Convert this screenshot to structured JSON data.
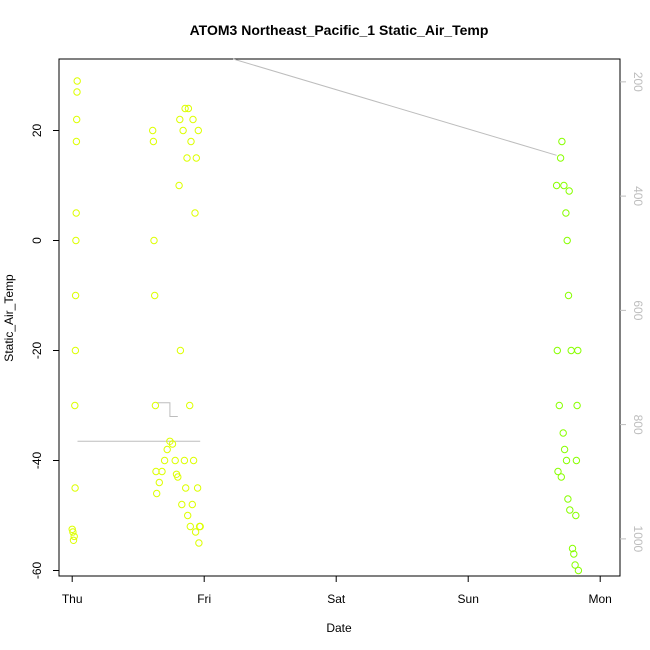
{
  "chart_data": {
    "type": "scatter",
    "title": "ATOM3 Northeast_Pacific_1 Static_Air_Temp",
    "xlabel": "Date",
    "ylabel": "Static_Air_Temp",
    "x_unit": "days after Thursday 00:00",
    "x_ticks": [
      {
        "value": 0,
        "label": "Thu"
      },
      {
        "value": 1,
        "label": "Fri"
      },
      {
        "value": 2,
        "label": "Sat"
      },
      {
        "value": 3,
        "label": "Sun"
      },
      {
        "value": 4,
        "label": "Mon"
      }
    ],
    "xlim": [
      -0.1,
      4.15
    ],
    "ylim": [
      -61,
      33
    ],
    "y_ticks": [
      -60,
      -40,
      -20,
      0,
      20
    ],
    "right_axis": {
      "ylim": [
        1065,
        160
      ],
      "ticks": [
        200,
        400,
        600,
        800,
        1000
      ],
      "color": "#bdbdbd"
    },
    "point_colors": {
      "early": "#ddff00",
      "late": "#88ff00"
    },
    "line_color": "#bdbdbd",
    "grid": false,
    "legend": "none",
    "clusters": [
      {
        "color": "#ddff00",
        "points": [
          [
            0.0,
            -52.5
          ],
          [
            0.005,
            -53
          ],
          [
            0.01,
            -54.5
          ],
          [
            0.015,
            -53.8
          ],
          [
            0.02,
            -30
          ],
          [
            0.022,
            -45
          ],
          [
            0.024,
            -20
          ],
          [
            0.026,
            -10
          ],
          [
            0.028,
            0
          ],
          [
            0.03,
            5
          ],
          [
            0.032,
            18
          ],
          [
            0.034,
            22
          ],
          [
            0.036,
            27
          ],
          [
            0.038,
            29
          ]
        ]
      },
      {
        "color": "#ddff00",
        "points": [
          [
            0.61,
            20
          ],
          [
            0.615,
            18
          ],
          [
            0.62,
            0
          ],
          [
            0.625,
            -10
          ],
          [
            0.63,
            -30
          ],
          [
            0.635,
            -42
          ],
          [
            0.64,
            -46
          ],
          [
            0.66,
            -44
          ],
          [
            0.68,
            -42
          ],
          [
            0.7,
            -40
          ],
          [
            0.72,
            -38
          ],
          [
            0.74,
            -36.5
          ],
          [
            0.76,
            -37
          ],
          [
            0.78,
            -40
          ],
          [
            0.79,
            -42.5
          ],
          [
            0.8,
            -43
          ],
          [
            0.81,
            10
          ],
          [
            0.815,
            22
          ],
          [
            0.82,
            -20
          ],
          [
            0.83,
            -48
          ],
          [
            0.84,
            20
          ],
          [
            0.85,
            -40
          ],
          [
            0.855,
            24
          ],
          [
            0.86,
            -45
          ],
          [
            0.87,
            15
          ],
          [
            0.875,
            -50
          ],
          [
            0.88,
            24
          ],
          [
            0.89,
            -30
          ],
          [
            0.895,
            -52
          ],
          [
            0.9,
            18
          ],
          [
            0.91,
            -48
          ],
          [
            0.915,
            22
          ],
          [
            0.92,
            -40
          ],
          [
            0.93,
            5
          ],
          [
            0.935,
            -53
          ],
          [
            0.94,
            15
          ],
          [
            0.95,
            -45
          ],
          [
            0.955,
            20
          ],
          [
            0.96,
            -55
          ],
          [
            0.965,
            -52
          ],
          [
            0.97,
            -52
          ]
        ]
      },
      {
        "color": "#88ff00",
        "points": [
          [
            3.67,
            10
          ],
          [
            3.675,
            -20
          ],
          [
            3.68,
            -42
          ],
          [
            3.69,
            -30
          ],
          [
            3.7,
            15
          ],
          [
            3.705,
            -43
          ],
          [
            3.71,
            18
          ],
          [
            3.72,
            -35
          ],
          [
            3.725,
            10
          ],
          [
            3.73,
            -38
          ],
          [
            3.74,
            5
          ],
          [
            3.745,
            -40
          ],
          [
            3.75,
            0
          ],
          [
            3.755,
            -47
          ],
          [
            3.76,
            -10
          ],
          [
            3.765,
            9
          ],
          [
            3.77,
            -49
          ],
          [
            3.78,
            -20
          ],
          [
            3.79,
            -56
          ],
          [
            3.8,
            -57
          ],
          [
            3.81,
            -59
          ],
          [
            3.815,
            -50
          ],
          [
            3.82,
            -40
          ],
          [
            3.825,
            -30
          ],
          [
            3.83,
            -20
          ],
          [
            3.835,
            -60
          ]
        ]
      }
    ],
    "line_path": [
      [
        0.04,
        -36.5
      ],
      [
        0.97,
        -36.5
      ]
    ],
    "line_path_2": [
      [
        0.64,
        -29.5
      ],
      [
        0.74,
        -29.5
      ],
      [
        0.74,
        -32
      ],
      [
        0.8,
        -32
      ]
    ],
    "line_path_3": [
      [
        1.22,
        33
      ],
      [
        3.67,
        15.5
      ]
    ]
  }
}
